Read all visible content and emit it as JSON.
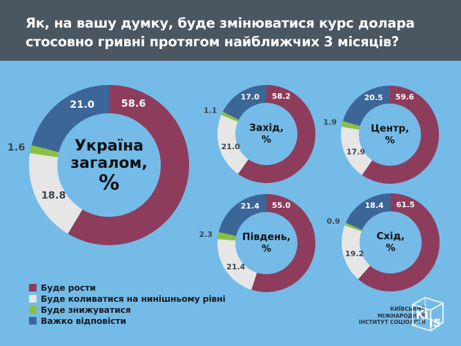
{
  "header": {
    "title": "Як, на вашу думку, буде змінюватися курс долара стосовно гривні протягом найближчих 3 місяців?"
  },
  "colors": {
    "header_bg": "#4a5660",
    "page_bg": "#74bbe8",
    "grow": "#8e3c5c",
    "stable": "#e6e6e6",
    "decline": "#8bbf44",
    "hard": "#3d6698",
    "outside_label": "#3b4650"
  },
  "chart_data": {
    "type": "pie",
    "variant": "donut",
    "categories": [
      "Буде рости",
      "Буде коливатися на нинішньому рівні",
      "Буде знижуватися",
      "Важко відповісти"
    ],
    "charts": [
      {
        "id": "ukraine",
        "title_lines": [
          "Україна",
          "загалом,",
          "%"
        ],
        "values": [
          58.6,
          18.8,
          1.6,
          21.0
        ],
        "labels": [
          "58.6",
          "18.8",
          "1.6",
          "21.0"
        ]
      },
      {
        "id": "west",
        "title_lines": [
          "Захід,",
          "%"
        ],
        "values": [
          58.2,
          21.0,
          1.1,
          17.0
        ],
        "labels": [
          "58.2",
          "21.0",
          "1.1",
          "17.0"
        ]
      },
      {
        "id": "center",
        "title_lines": [
          "Центр,",
          "%"
        ],
        "values": [
          59.6,
          17.9,
          1.9,
          20.5
        ],
        "labels": [
          "59.6",
          "17.9",
          "1.9",
          "20.5"
        ]
      },
      {
        "id": "south",
        "title_lines": [
          "Південь,",
          "%"
        ],
        "values": [
          55.0,
          21.4,
          2.3,
          21.4
        ],
        "labels": [
          "55.0",
          "21.4",
          "2.3",
          "21.4"
        ]
      },
      {
        "id": "east",
        "title_lines": [
          "Схід,",
          "%"
        ],
        "values": [
          61.5,
          19.2,
          0.9,
          18.4
        ],
        "labels": [
          "61.5",
          "19.2",
          "0.9",
          "18.4"
        ]
      }
    ],
    "legend_position": "bottom-left"
  },
  "legend": {
    "items": [
      {
        "label": "Буде рости",
        "color": "#8e3c5c"
      },
      {
        "label": "Буде коливатися на нинішньому рівні",
        "color": "#e6e6e6"
      },
      {
        "label": "Буде знижуватися",
        "color": "#8bbf44"
      },
      {
        "label": "Важко відповісти",
        "color": "#3d6698"
      }
    ]
  },
  "org": {
    "lines": [
      "КИЇВСЬКИЙ",
      "МІЖНАРОДНИЙ",
      "ІНСТИТУТ СОЦІОЛОГІЇ"
    ],
    "logo_text_1": "Ki",
    "logo_text_2": "iS"
  }
}
